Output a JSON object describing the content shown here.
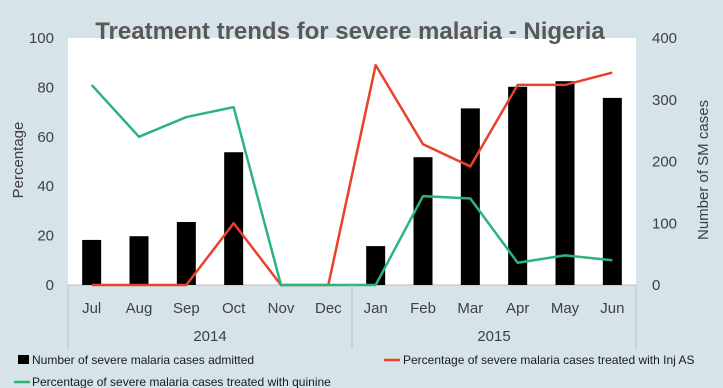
{
  "chart_data": {
    "type": "bar-line-combo",
    "title": "Treatment trends for severe malaria - Nigeria",
    "categories": [
      "Jul",
      "Aug",
      "Sep",
      "Oct",
      "Nov",
      "Dec",
      "Jan",
      "Feb",
      "Mar",
      "Apr",
      "May",
      "Jun"
    ],
    "groups": [
      {
        "label": "2014",
        "months": [
          "Jul",
          "Aug",
          "Sep",
          "Oct",
          "Nov",
          "Dec"
        ]
      },
      {
        "label": "2015",
        "months": [
          "Jan",
          "Feb",
          "Mar",
          "Apr",
          "May",
          "Jun"
        ]
      }
    ],
    "ylabel_left": "Percentage",
    "ylabel_right": "Number of SM cases",
    "ylim_left": [
      0,
      100
    ],
    "ylim_right": [
      0,
      400
    ],
    "yticks_left": [
      "0",
      "20",
      "40",
      "60",
      "80",
      "100"
    ],
    "yticks_right": [
      "0",
      "100",
      "200",
      "300",
      "400"
    ],
    "grid": false,
    "legend_position": "bottom",
    "series": [
      {
        "name": "Number of severe malaria cases admitted",
        "type": "bar",
        "axis": "right",
        "color": "#000000",
        "values": [
          73,
          79,
          102,
          215,
          0,
          0,
          63,
          207,
          286,
          321,
          330,
          303
        ]
      },
      {
        "name": "Percentage of severe malaria cases treated with Inj AS",
        "type": "line",
        "axis": "left",
        "color": "#e8412c",
        "values": [
          0,
          0,
          0,
          25,
          0,
          0,
          89,
          57,
          48,
          81,
          81,
          86
        ]
      },
      {
        "name": "Percentage of severe malaria cases treated with quinine",
        "type": "line",
        "axis": "left",
        "color": "#2cb57a",
        "values": [
          81,
          60,
          68,
          72,
          0,
          0,
          0,
          36,
          35,
          9,
          12,
          10
        ]
      }
    ]
  }
}
